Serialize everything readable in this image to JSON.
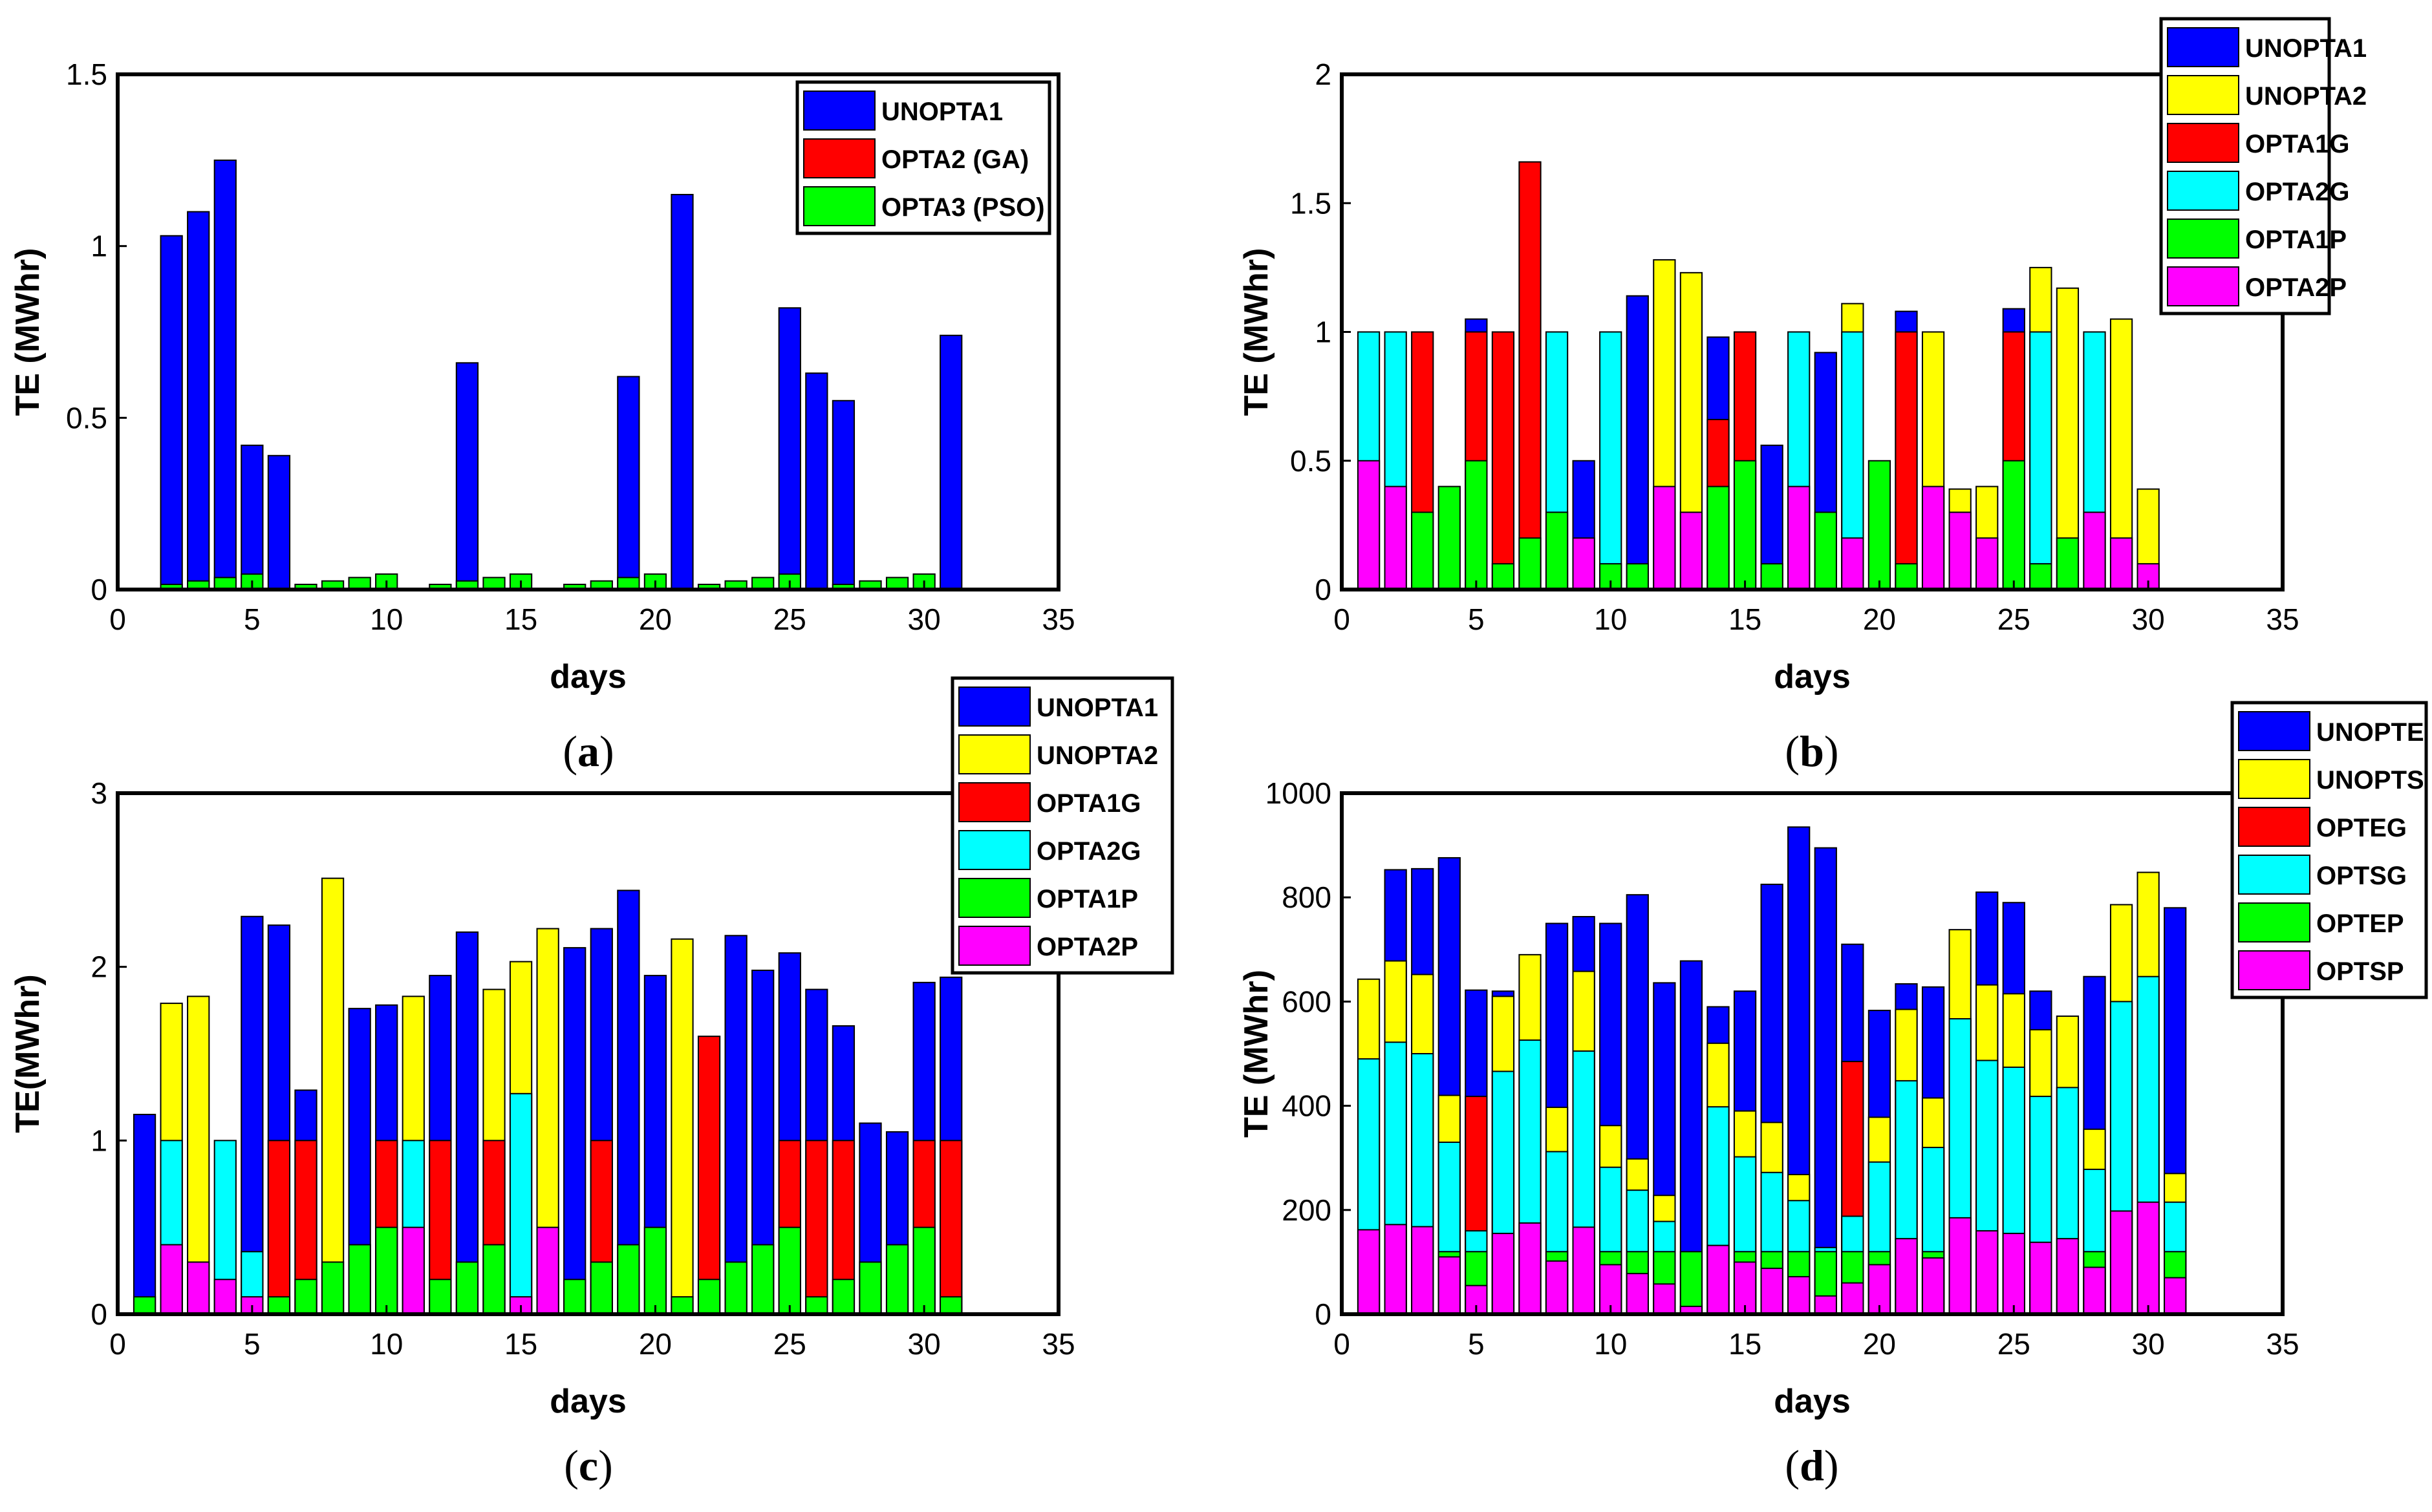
{
  "colors": {
    "blue": "#0000ff",
    "yellow": "#ffff00",
    "red": "#ff0000",
    "cyan": "#00ffff",
    "green": "#00ff00",
    "magenta": "#ff00ff"
  },
  "chart_data": [
    {
      "panel": "a",
      "panel_label": "a",
      "type": "bar",
      "barmode": "overlay",
      "xlabel": "days",
      "ylabel": "TE (MWhr)",
      "xlim": [
        0,
        35
      ],
      "ylim": [
        0,
        1.5
      ],
      "xticks": [
        "0",
        "5",
        "10",
        "15",
        "20",
        "25",
        "30",
        "35"
      ],
      "yticks": [
        "0",
        "0.5",
        "1",
        "1.5"
      ],
      "legend_position": "top-right",
      "x": [
        1,
        2,
        3,
        4,
        5,
        6,
        7,
        8,
        9,
        10,
        11,
        12,
        13,
        14,
        15,
        16,
        17,
        18,
        19,
        20,
        21,
        22,
        23,
        24,
        25,
        26,
        27,
        28,
        29,
        30,
        31
      ],
      "series": [
        {
          "name": "UNOPTA1",
          "color_key": "blue",
          "values": [
            0,
            1.03,
            1.1,
            1.25,
            0.42,
            0.39,
            0,
            0,
            0,
            0,
            0,
            0,
            0.66,
            0,
            0,
            0,
            0,
            0,
            0.62,
            0,
            1.15,
            0,
            0,
            0,
            0.82,
            0.63,
            0.55,
            0,
            0,
            0,
            0.74
          ]
        },
        {
          "name": "OPTA2 (GA)",
          "color_key": "red",
          "values": [
            0,
            0,
            0,
            0,
            0,
            0,
            0,
            0,
            0,
            0,
            0,
            0,
            0,
            0,
            0,
            0,
            0,
            0,
            0,
            0,
            0,
            0,
            0,
            0,
            0,
            0,
            0,
            0,
            0,
            0,
            0
          ]
        },
        {
          "name": "OPTA3 (PSO)",
          "color_key": "green",
          "values": [
            0,
            0.015,
            0.025,
            0.035,
            0.045,
            0,
            0.015,
            0.025,
            0.035,
            0.045,
            0,
            0.015,
            0.025,
            0.035,
            0.045,
            0,
            0.015,
            0.025,
            0.035,
            0.045,
            0,
            0.015,
            0.025,
            0.035,
            0.045,
            0,
            0.015,
            0.025,
            0.035,
            0.045,
            0
          ]
        }
      ]
    },
    {
      "panel": "b",
      "panel_label": "b",
      "type": "bar",
      "barmode": "overlay",
      "xlabel": "days",
      "ylabel": "TE (MWhr)",
      "xlim": [
        0,
        35
      ],
      "ylim": [
        0,
        2
      ],
      "xticks": [
        "0",
        "5",
        "10",
        "15",
        "20",
        "25",
        "30",
        "35"
      ],
      "yticks": [
        "0",
        "0.5",
        "1",
        "1.5",
        "2"
      ],
      "legend_position": "top-right",
      "x": [
        1,
        2,
        3,
        4,
        5,
        6,
        7,
        8,
        9,
        10,
        11,
        12,
        13,
        14,
        15,
        16,
        17,
        18,
        19,
        20,
        21,
        22,
        23,
        24,
        25,
        26,
        27,
        28,
        29,
        30
      ],
      "series": [
        {
          "name": "UNOPTA1",
          "color_key": "blue",
          "values": [
            0,
            0,
            0,
            0,
            1.05,
            0,
            0,
            0,
            0.5,
            0,
            1.14,
            0,
            0,
            0.98,
            0,
            0.56,
            0,
            0.92,
            0,
            0,
            1.08,
            0,
            0,
            0,
            1.09,
            0,
            0,
            0,
            0,
            0
          ]
        },
        {
          "name": "UNOPTA2",
          "color_key": "yellow",
          "values": [
            0,
            0,
            0,
            0,
            0,
            0,
            0,
            0,
            0,
            0,
            0,
            1.28,
            1.23,
            0,
            0,
            0,
            0,
            0,
            1.11,
            0,
            0,
            1.0,
            0.39,
            0.4,
            0,
            1.25,
            1.17,
            0,
            1.05,
            0.39
          ]
        },
        {
          "name": "OPTA1G",
          "color_key": "red",
          "values": [
            0,
            0,
            1.0,
            0,
            1.0,
            1.0,
            1.66,
            0,
            0,
            0,
            0,
            0,
            0,
            0.66,
            1.0,
            0,
            0,
            0,
            0,
            0,
            1.0,
            0,
            0,
            0,
            1.0,
            0,
            0,
            0,
            0,
            0
          ]
        },
        {
          "name": "OPTA2G",
          "color_key": "cyan",
          "values": [
            1.0,
            1.0,
            0,
            0,
            0,
            0,
            0,
            1.0,
            0,
            1.0,
            0,
            0,
            0,
            0,
            0,
            0,
            1.0,
            0,
            1.0,
            0,
            0,
            0,
            0,
            0,
            0,
            1.0,
            0,
            1.0,
            0,
            0
          ]
        },
        {
          "name": "OPTA1P",
          "color_key": "green",
          "values": [
            0,
            0,
            0.3,
            0.4,
            0.5,
            0.1,
            0.2,
            0.3,
            0,
            0.1,
            0.1,
            0,
            0,
            0.4,
            0.5,
            0.1,
            0,
            0.3,
            0,
            0.5,
            0.1,
            0,
            0,
            0,
            0.5,
            0.1,
            0.2,
            0,
            0,
            0
          ]
        },
        {
          "name": "OPTA2P",
          "color_key": "magenta",
          "values": [
            0.5,
            0.4,
            0,
            0,
            0,
            0,
            0,
            0,
            0.2,
            0,
            0,
            0.4,
            0.3,
            0,
            0,
            0,
            0.4,
            0,
            0.2,
            0,
            0,
            0.4,
            0.3,
            0.2,
            0,
            0,
            0,
            0.3,
            0.2,
            0.1
          ]
        }
      ]
    },
    {
      "panel": "c",
      "panel_label": "c",
      "type": "bar",
      "barmode": "overlay",
      "xlabel": "days",
      "ylabel": "TE(MWhr)",
      "xlim": [
        0,
        35
      ],
      "ylim": [
        0,
        3
      ],
      "xticks": [
        "0",
        "5",
        "10",
        "15",
        "20",
        "25",
        "30",
        "35"
      ],
      "yticks": [
        "0",
        "1",
        "2",
        "3"
      ],
      "legend_position": "top-right",
      "x": [
        1,
        2,
        3,
        4,
        5,
        6,
        7,
        8,
        9,
        10,
        11,
        12,
        13,
        14,
        15,
        16,
        17,
        18,
        19,
        20,
        21,
        22,
        23,
        24,
        25,
        26,
        27,
        28,
        29,
        30,
        31
      ],
      "series": [
        {
          "name": "UNOPTA1",
          "color_key": "blue",
          "values": [
            1.15,
            0,
            0,
            0,
            2.29,
            2.24,
            1.29,
            0,
            1.76,
            1.78,
            0,
            1.95,
            2.2,
            0,
            0,
            0,
            2.11,
            2.22,
            2.44,
            1.95,
            0,
            0,
            2.18,
            1.98,
            2.08,
            1.87,
            1.66,
            1.1,
            1.05,
            1.91,
            1.94
          ]
        },
        {
          "name": "UNOPTA2",
          "color_key": "yellow",
          "values": [
            0,
            1.79,
            1.83,
            0,
            0,
            0,
            0,
            2.51,
            0,
            0,
            1.83,
            0,
            0,
            1.87,
            2.03,
            2.22,
            0,
            0,
            0,
            0,
            2.16,
            0,
            0,
            0,
            0,
            0,
            0,
            0,
            0,
            0,
            0
          ]
        },
        {
          "name": "OPTA1G",
          "color_key": "red",
          "values": [
            0,
            0,
            0,
            0,
            0,
            1.0,
            1.0,
            0,
            0,
            1.0,
            0,
            1.0,
            0,
            1.0,
            0,
            0,
            0,
            1.0,
            0,
            0,
            0,
            1.6,
            0,
            0,
            1.0,
            1.0,
            1.0,
            0,
            0,
            1.0,
            1.0
          ]
        },
        {
          "name": "OPTA2G",
          "color_key": "cyan",
          "values": [
            0,
            1.0,
            0,
            1.0,
            0.36,
            0,
            0,
            0,
            0,
            0,
            1.0,
            0,
            0,
            0,
            1.27,
            0,
            0,
            0,
            0,
            0,
            0,
            0,
            0,
            0,
            0,
            0,
            0,
            0,
            0,
            0,
            0
          ]
        },
        {
          "name": "OPTA1P",
          "color_key": "green",
          "values": [
            0.1,
            0,
            0,
            0,
            0,
            0.1,
            0.2,
            0.3,
            0.4,
            0.5,
            0,
            0.2,
            0.3,
            0.4,
            0,
            0,
            0.2,
            0.3,
            0.4,
            0.5,
            0.1,
            0.2,
            0.3,
            0.4,
            0.5,
            0.1,
            0.2,
            0.3,
            0.4,
            0.5,
            0.1
          ]
        },
        {
          "name": "OPTA2P",
          "color_key": "magenta",
          "values": [
            0,
            0.4,
            0.3,
            0.2,
            0.1,
            0,
            0,
            0,
            0,
            0,
            0.5,
            0,
            0,
            0,
            0.1,
            0.5,
            0,
            0,
            0,
            0,
            0,
            0,
            0,
            0,
            0,
            0,
            0,
            0,
            0,
            0,
            0
          ]
        }
      ]
    },
    {
      "panel": "d",
      "panel_label": "d",
      "type": "bar",
      "barmode": "overlay",
      "xlabel": "days",
      "ylabel": "TE (MWhr)",
      "xlim": [
        0,
        35
      ],
      "ylim": [
        0,
        1000
      ],
      "xticks": [
        "0",
        "5",
        "10",
        "15",
        "20",
        "25",
        "30",
        "35"
      ],
      "yticks": [
        "0",
        "200",
        "400",
        "600",
        "800",
        "1000"
      ],
      "legend_position": "top-right",
      "x": [
        1,
        2,
        3,
        4,
        5,
        6,
        7,
        8,
        9,
        10,
        11,
        12,
        13,
        14,
        15,
        16,
        17,
        18,
        19,
        20,
        21,
        22,
        23,
        24,
        25,
        26,
        27,
        28,
        29,
        30,
        31
      ],
      "series": [
        {
          "name": "UNOPTE",
          "color_key": "blue",
          "values": [
            0,
            853,
            855,
            876,
            622,
            620,
            0,
            750,
            763,
            750,
            805,
            636,
            678,
            590,
            620,
            825,
            935,
            895,
            710,
            583,
            634,
            628,
            0,
            810,
            790,
            620,
            0,
            648,
            0,
            0,
            780
          ]
        },
        {
          "name": "UNOPTS",
          "color_key": "yellow",
          "values": [
            643,
            678,
            652,
            420,
            0,
            610,
            690,
            397,
            658,
            362,
            298,
            228,
            0,
            520,
            390,
            368,
            268,
            0,
            0,
            378,
            585,
            415,
            738,
            632,
            615,
            546,
            572,
            355,
            786,
            848,
            270
          ]
        },
        {
          "name": "OPTEG",
          "color_key": "red",
          "values": [
            0,
            0,
            0,
            0,
            418,
            0,
            0,
            0,
            0,
            0,
            0,
            0,
            0,
            0,
            0,
            0,
            0,
            0,
            485,
            0,
            0,
            0,
            0,
            0,
            0,
            0,
            0,
            0,
            0,
            0,
            0
          ]
        },
        {
          "name": "OPTSG",
          "color_key": "cyan",
          "values": [
            490,
            522,
            500,
            330,
            160,
            466,
            526,
            312,
            505,
            282,
            238,
            178,
            0,
            398,
            302,
            272,
            218,
            128,
            188,
            292,
            448,
            320,
            567,
            487,
            474,
            418,
            435,
            278,
            600,
            648,
            215
          ]
        },
        {
          "name": "OPTEP",
          "color_key": "green",
          "values": [
            0,
            0,
            0,
            120,
            120,
            0,
            0,
            120,
            0,
            120,
            120,
            120,
            120,
            0,
            120,
            120,
            120,
            120,
            120,
            120,
            0,
            120,
            0,
            0,
            0,
            0,
            0,
            120,
            0,
            0,
            120
          ]
        },
        {
          "name": "OPTSP",
          "color_key": "magenta",
          "values": [
            162,
            172,
            168,
            110,
            55,
            155,
            175,
            102,
            167,
            95,
            78,
            58,
            15,
            132,
            100,
            88,
            72,
            35,
            60,
            95,
            145,
            108,
            185,
            160,
            155,
            138,
            145,
            90,
            198,
            215,
            70
          ]
        }
      ]
    }
  ]
}
